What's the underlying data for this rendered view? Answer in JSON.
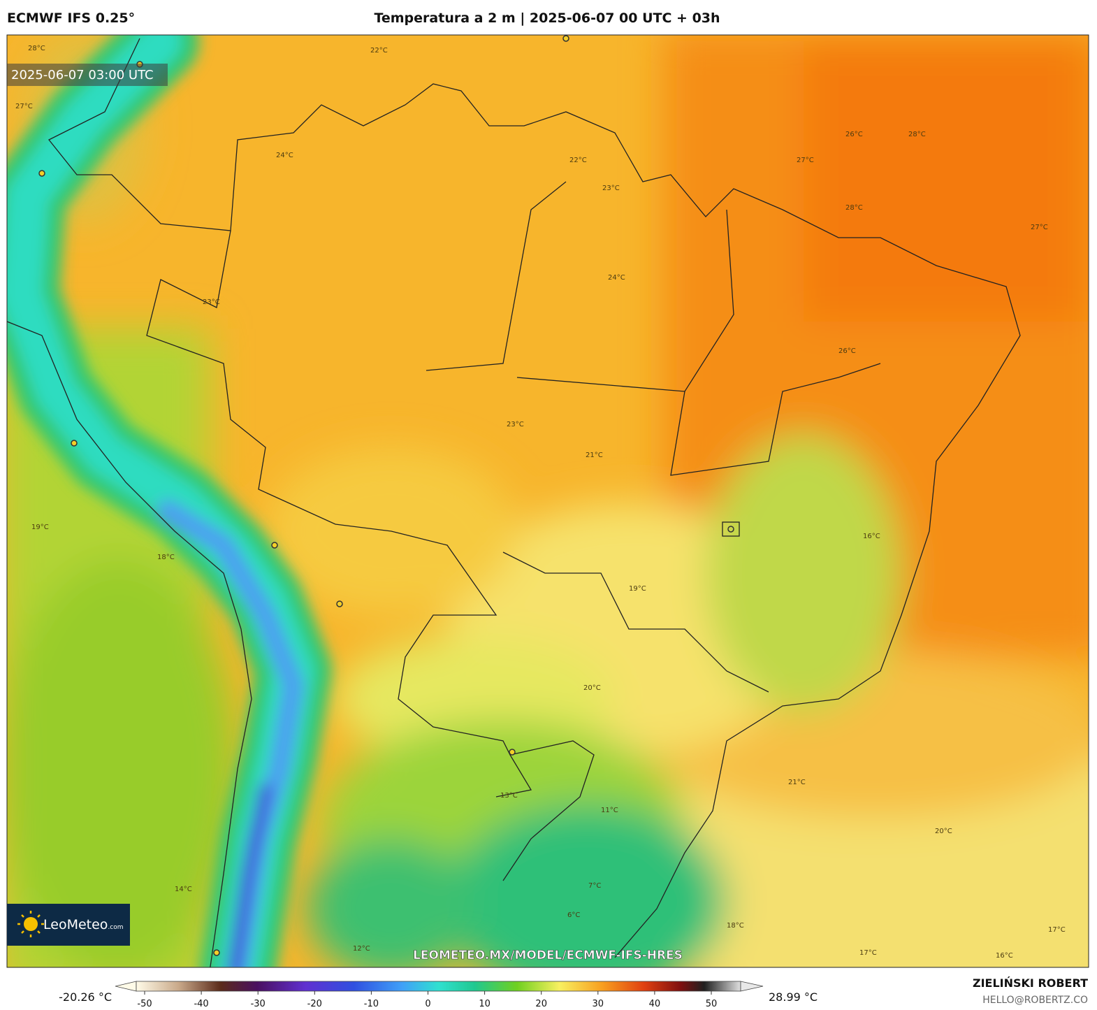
{
  "header": {
    "model": "ECMWF IFS 0.25°",
    "title": "Temperatura a 2 m | 2025-06-07 00 UTC + 03h"
  },
  "map": {
    "timestamp": "2025-06-07 03:00 UTC",
    "watermark": "LEOMETEO.MX/MODEL/ECMWF-IFS-HRES",
    "logo": {
      "name": "LeoMeteo",
      "suffix": ".com"
    },
    "contour_labels": [
      "28°C",
      "27°C",
      "22°C",
      "24°C",
      "23°C",
      "26°C",
      "28°C",
      "27°C",
      "28°C",
      "27°C",
      "24°C",
      "22°C",
      "23°C",
      "26°C",
      "23°C",
      "21°C",
      "19°C",
      "18°C",
      "16°C",
      "19°C",
      "20°C",
      "21°C",
      "20°C",
      "18°C",
      "17°C",
      "16°C",
      "13°C",
      "11°C",
      "7°C",
      "6°C",
      "12°C",
      "17°C",
      "14°C"
    ]
  },
  "colorbar": {
    "min_label": "-20.26 °C",
    "max_label": "28.99 °C",
    "ticks": [
      -50,
      -40,
      -30,
      -20,
      -10,
      0,
      10,
      20,
      30,
      40,
      50
    ]
  },
  "footer": {
    "author": "ZIELIŃSKI ROBERT",
    "email": "HELLO@ROBERTZ.CO"
  }
}
